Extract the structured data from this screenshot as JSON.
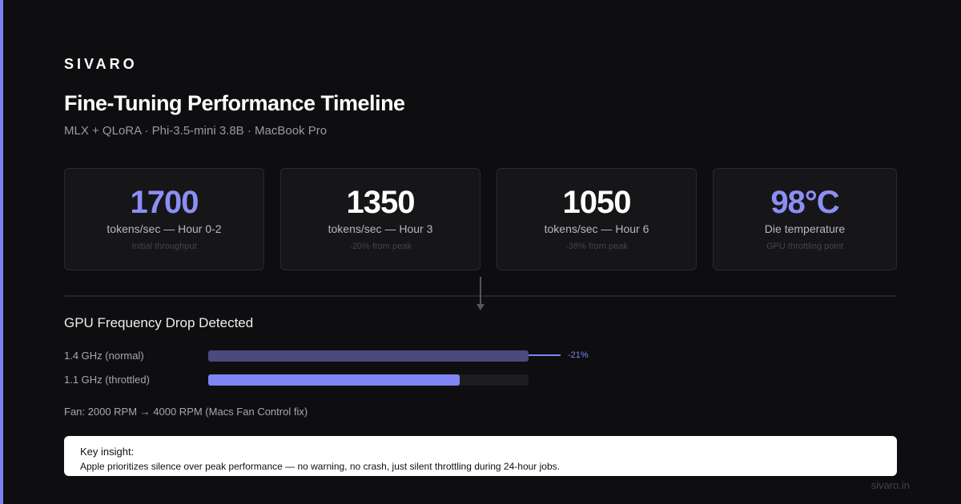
{
  "brand": "SIVARO",
  "header": {
    "title": "Fine-Tuning Performance Timeline",
    "subtitle": "MLX + QLoRA · Phi-3.5-mini 3.8B · MacBook Pro"
  },
  "stats": [
    {
      "value": "1700",
      "label": "tokens/sec — Hour 0-2",
      "note": "Initial throughput",
      "color": "#8b8ff5"
    },
    {
      "value": "1350",
      "label": "tokens/sec — Hour 3",
      "note": "-20% from peak",
      "color": "#ffffff"
    },
    {
      "value": "1050",
      "label": "tokens/sec — Hour 6",
      "note": "-38% from peak",
      "color": "#ffffff"
    },
    {
      "value": "98°C",
      "label": "Die temperature",
      "note": "GPU throttling point",
      "color": "#8b8ff5"
    }
  ],
  "frequency": {
    "title": "GPU Frequency Drop Detected",
    "bars": [
      {
        "label": "1.4 GHz (normal)",
        "value": 1.4,
        "color": "#4a4a7c"
      },
      {
        "label": "1.1 GHz (throttled)",
        "value": 1.1,
        "color": "#8184f4"
      }
    ],
    "change_label": "-21%"
  },
  "fan_note": "Fan: 2000 RPM → 4000 RPM (Macs Fan Control fix)",
  "insight": {
    "title": "Key insight:",
    "text": "Apple prioritizes silence over peak performance — no warning, no crash, just silent throttling during 24-hour jobs."
  },
  "footer": "sivaro.in"
}
